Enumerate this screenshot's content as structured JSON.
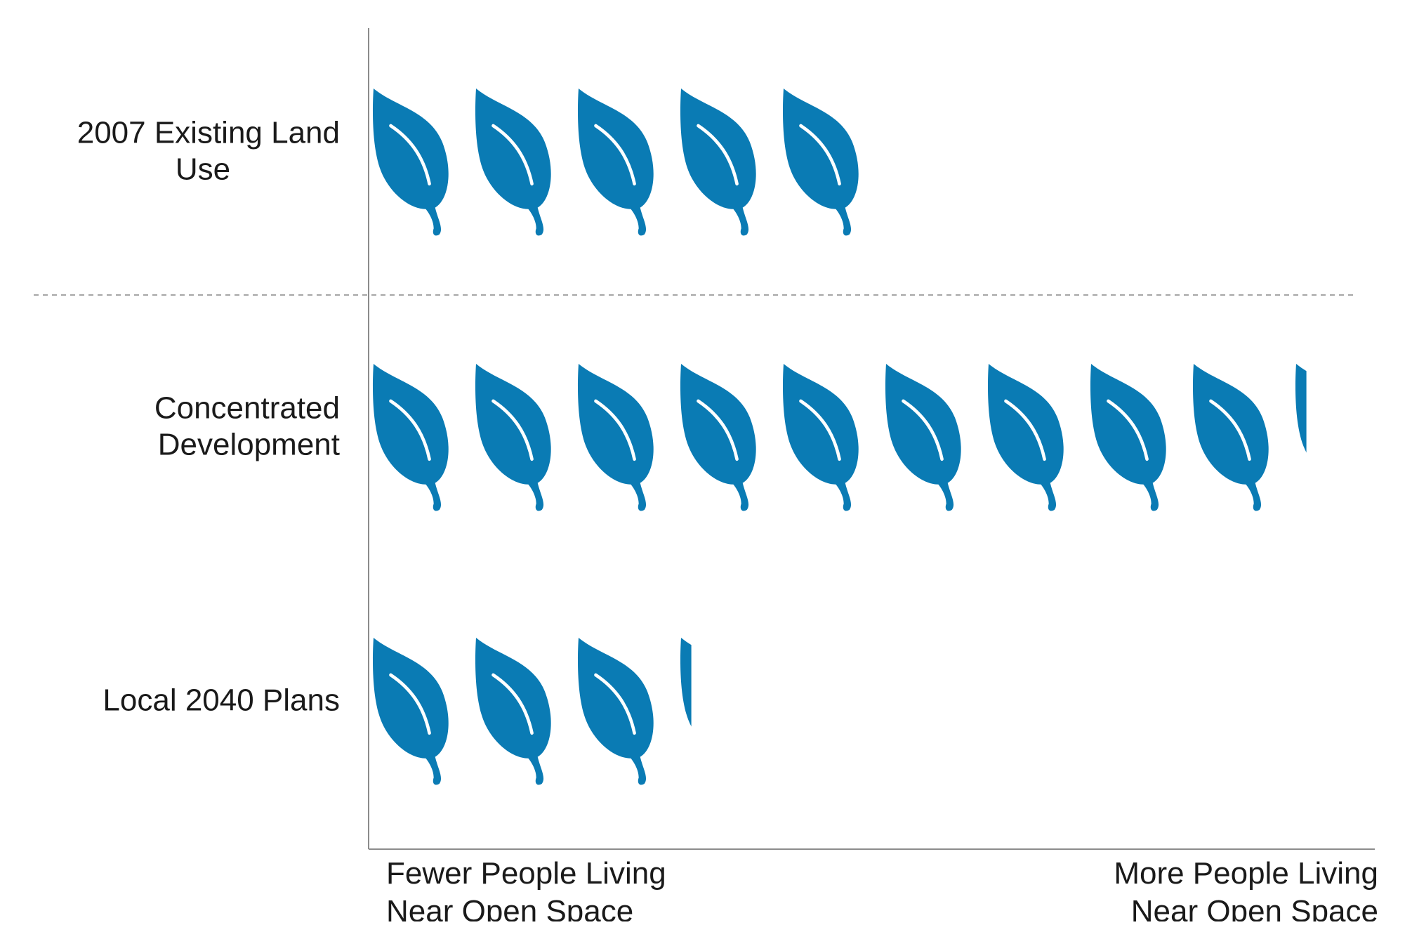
{
  "chart_data": {
    "type": "bar",
    "subtype": "pictograph",
    "icon": "leaf-icon",
    "categories": [
      [
        "2007 Existing Land",
        "Use"
      ],
      [
        "Concentrated",
        "Development"
      ],
      [
        "Local 2040 Plans"
      ]
    ],
    "values": [
      4.8,
      9.1,
      3.1
    ],
    "xlim": [
      0,
      9.8
    ],
    "x_axis_labels": {
      "low": [
        "Fewer People Living",
        "Near Open Space"
      ],
      "high": [
        "More People Living",
        "Near Open Space"
      ]
    },
    "separator_after_category": 0,
    "colors": {
      "icon": "#0A7BB4",
      "vein": "#FFFFFF",
      "axis": "#8C8C8C",
      "separator": "#A6A6A6",
      "text": "#1A1A1A"
    }
  }
}
